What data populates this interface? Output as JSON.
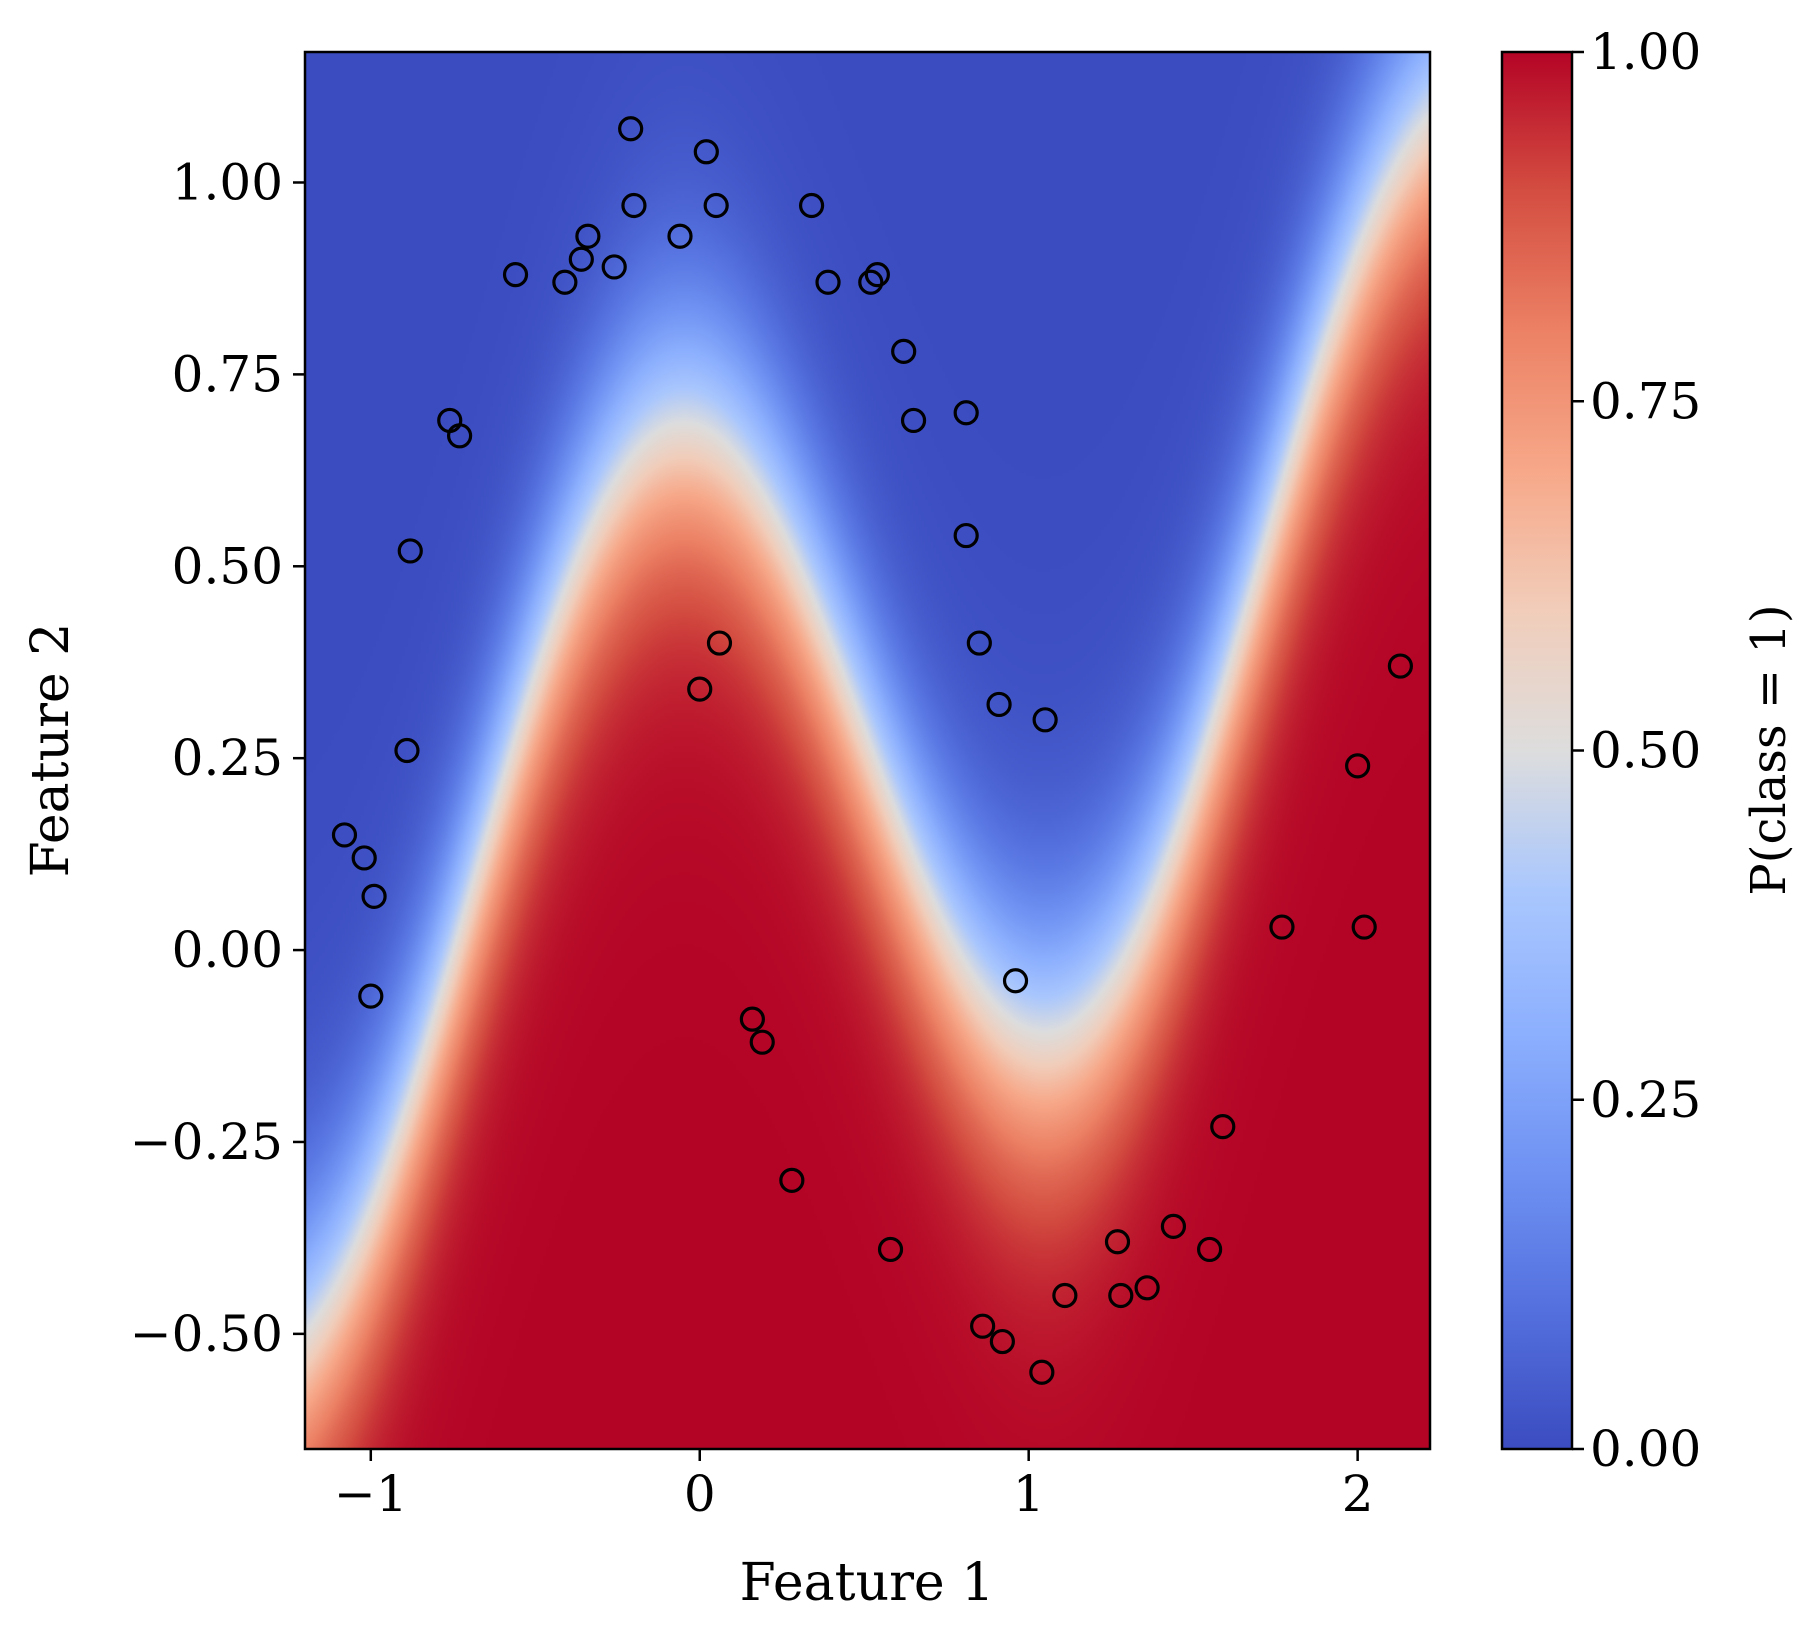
{
  "chart_data": {
    "type": "heatmap",
    "description_free": true,
    "xlabel": "Feature 1",
    "ylabel": "Feature 2",
    "colorbar_label": "P(class = 1)",
    "xlim": [
      -1.2,
      2.22
    ],
    "ylim": [
      -0.65,
      1.17
    ],
    "x_ticks": [
      {
        "value": -1,
        "label": "−1"
      },
      {
        "value": 0,
        "label": "0"
      },
      {
        "value": 1,
        "label": "1"
      },
      {
        "value": 2,
        "label": "2"
      }
    ],
    "y_ticks": [
      {
        "value": -0.5,
        "label": "−0.50"
      },
      {
        "value": -0.25,
        "label": "−0.25"
      },
      {
        "value": 0,
        "label": "0.00"
      },
      {
        "value": 0.25,
        "label": "0.25"
      },
      {
        "value": 0.5,
        "label": "0.50"
      },
      {
        "value": 0.75,
        "label": "0.75"
      },
      {
        "value": 1,
        "label": "1.00"
      }
    ],
    "colorbar_range": [
      0,
      1
    ],
    "colorbar_ticks": [
      {
        "value": 0,
        "label": "0.00"
      },
      {
        "value": 0.25,
        "label": "0.25"
      },
      {
        "value": 0.5,
        "label": "0.50"
      },
      {
        "value": 0.75,
        "label": "0.75"
      },
      {
        "value": 1,
        "label": "1.00"
      }
    ],
    "colormap": "coolwarm",
    "colors": {
      "low": "#3b4cc0",
      "mid": "#dddddd",
      "high": "#b40426"
    },
    "points": [
      {
        "x": -0.21,
        "y": 1.07
      },
      {
        "x": 0.02,
        "y": 1.04
      },
      {
        "x": -0.2,
        "y": 0.97
      },
      {
        "x": 0.05,
        "y": 0.97
      },
      {
        "x": 0.34,
        "y": 0.97
      },
      {
        "x": -0.34,
        "y": 0.93
      },
      {
        "x": -0.06,
        "y": 0.93
      },
      {
        "x": -0.36,
        "y": 0.9
      },
      {
        "x": -0.26,
        "y": 0.89
      },
      {
        "x": -0.56,
        "y": 0.88
      },
      {
        "x": -0.41,
        "y": 0.87
      },
      {
        "x": 0.39,
        "y": 0.87
      },
      {
        "x": 0.54,
        "y": 0.88
      },
      {
        "x": 0.52,
        "y": 0.87
      },
      {
        "x": 0.62,
        "y": 0.78
      },
      {
        "x": -0.76,
        "y": 0.69
      },
      {
        "x": -0.73,
        "y": 0.67
      },
      {
        "x": 0.65,
        "y": 0.69
      },
      {
        "x": 0.81,
        "y": 0.7
      },
      {
        "x": -0.88,
        "y": 0.52
      },
      {
        "x": 0.81,
        "y": 0.54
      },
      {
        "x": 0.06,
        "y": 0.4
      },
      {
        "x": 0.85,
        "y": 0.4
      },
      {
        "x": 0.0,
        "y": 0.34
      },
      {
        "x": 0.91,
        "y": 0.32
      },
      {
        "x": 1.05,
        "y": 0.3
      },
      {
        "x": 2.13,
        "y": 0.37
      },
      {
        "x": -0.89,
        "y": 0.26
      },
      {
        "x": 2.0,
        "y": 0.24
      },
      {
        "x": -1.08,
        "y": 0.15
      },
      {
        "x": -1.02,
        "y": 0.12
      },
      {
        "x": -0.99,
        "y": 0.07
      },
      {
        "x": 1.77,
        "y": 0.03
      },
      {
        "x": 2.02,
        "y": 0.03
      },
      {
        "x": -1.0,
        "y": -0.06
      },
      {
        "x": 0.96,
        "y": -0.04
      },
      {
        "x": 0.16,
        "y": -0.09
      },
      {
        "x": 0.19,
        "y": -0.12
      },
      {
        "x": 1.59,
        "y": -0.23
      },
      {
        "x": 0.28,
        "y": -0.3
      },
      {
        "x": 0.58,
        "y": -0.39
      },
      {
        "x": 1.27,
        "y": -0.38
      },
      {
        "x": 1.44,
        "y": -0.36
      },
      {
        "x": 1.55,
        "y": -0.39
      },
      {
        "x": 1.11,
        "y": -0.45
      },
      {
        "x": 1.28,
        "y": -0.45
      },
      {
        "x": 1.36,
        "y": -0.44
      },
      {
        "x": 0.86,
        "y": -0.49
      },
      {
        "x": 0.92,
        "y": -0.51
      },
      {
        "x": 1.04,
        "y": -0.55
      }
    ]
  }
}
